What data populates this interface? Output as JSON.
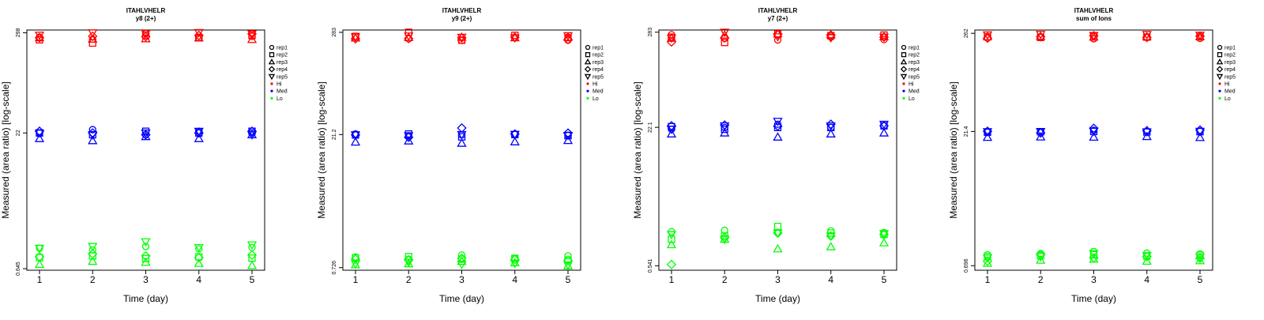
{
  "chart_data": [
    {
      "type": "scatter",
      "title": "ITAHLVHELR",
      "subtitle": "y8 (2+)",
      "xlabel": "Time (day)",
      "ylabel": "Measured (area ratio) [log-scale]",
      "xlim": [
        1,
        5
      ],
      "yscale": "log",
      "ylim": [
        0.62,
        320
      ],
      "x_ticks": [
        "1",
        "2",
        "3",
        "4",
        "5"
      ],
      "y_ticks": [
        {
          "value": 298,
          "label": "298"
        },
        {
          "value": 22,
          "label": "22"
        },
        {
          "value": 0.645,
          "label": "0.645"
        }
      ],
      "legend": {
        "placement": "right",
        "entries": [
          "rep1",
          "rep2",
          "rep3",
          "rep4",
          "rep5",
          "Hi",
          "Med",
          "Lo"
        ]
      },
      "series": [
        {
          "level": "Hi",
          "color": "#ff0000",
          "values": [
            [
              266,
              252,
              292,
              262,
              272
            ],
            [
              248,
              228,
              278,
              264,
              278
            ],
            [
              262,
              252,
              255,
              260,
              250
            ],
            [
              262,
              272,
              270,
              278,
              290
            ],
            [
              280,
              298,
              292,
              300,
              290
            ]
          ]
        },
        {
          "level": "Med",
          "color": "#0000ff",
          "values": [
            [
              22,
              24,
              21,
              23,
              22
            ],
            [
              22,
              21,
              23,
              22,
              23
            ],
            [
              19,
              18,
              20,
              19,
              21
            ],
            [
              23,
              22,
              21,
              22,
              23
            ],
            [
              22,
              21,
              22,
              23,
              21
            ]
          ]
        },
        {
          "level": "Lo",
          "color": "#00ff00",
          "values": [
            [
              1.1,
              1.05,
              1.15,
              1.08,
              1.12
            ],
            [
              0.86,
              0.9,
              0.84,
              0.88,
              0.85
            ],
            [
              0.72,
              0.78,
              0.76,
              0.74,
              0.7
            ],
            [
              0.88,
              0.95,
              0.9,
              0.86,
              0.92
            ],
            [
              1.1,
              1.15,
              1.3,
              1.12,
              1.2
            ]
          ]
        }
      ]
    },
    {
      "type": "scatter",
      "title": "ITAHLVHELR",
      "subtitle": "y9 (2+)",
      "xlabel": "Time (day)",
      "ylabel": "Measured (area ratio) [log-scale]",
      "xlim": [
        1,
        5
      ],
      "yscale": "log",
      "ylim": [
        0.68,
        300
      ],
      "x_ticks": [
        "1",
        "2",
        "3",
        "4",
        "5"
      ],
      "y_ticks": [
        {
          "value": 283,
          "label": "283"
        },
        {
          "value": 21.2,
          "label": "21.2"
        },
        {
          "value": 0.726,
          "label": "0.726"
        }
      ],
      "legend": {
        "placement": "right",
        "entries": [
          "rep1",
          "rep2",
          "rep3",
          "rep4",
          "rep5",
          "Hi",
          "Med",
          "Lo"
        ]
      },
      "series": [
        {
          "level": "Hi",
          "color": "#ff0000",
          "values": [
            [
              255,
              240,
              230,
              248,
              232
            ],
            [
              255,
              283,
              232,
              262,
              248
            ],
            [
              245,
              248,
              250,
              246,
              250
            ],
            [
              240,
              242,
              246,
              250,
              236
            ],
            [
              252,
              258,
              250,
              246,
              260
            ]
          ]
        },
        {
          "level": "Med",
          "color": "#0000ff",
          "values": [
            [
              21.5,
              20.5,
              21,
              21.2,
              20.8
            ],
            [
              21,
              21.5,
              20,
              21.2,
              20.6
            ],
            [
              17.5,
              18,
              17,
              17.6,
              18.2
            ],
            [
              21,
              19.8,
              25,
              21.5,
              22
            ],
            [
              21,
              20.6,
              21.2,
              21.3,
              20.8
            ]
          ]
        },
        {
          "level": "Lo",
          "color": "#00ff00",
          "values": [
            [
              0.95,
              0.9,
              1.0,
              0.92,
              0.98
            ],
            [
              0.93,
              0.96,
              0.9,
              0.92,
              0.88
            ],
            [
              0.78,
              0.8,
              0.85,
              0.82,
              0.76
            ],
            [
              0.9,
              0.88,
              0.92,
              0.89,
              0.87
            ],
            [
              0.8,
              0.83,
              0.79,
              0.81,
              0.78
            ]
          ]
        }
      ]
    },
    {
      "type": "scatter",
      "title": "ITAHLVHELR",
      "subtitle": "y7 (2+)",
      "xlabel": "Time (day)",
      "ylabel": "Measured (area ratio) [log-scale]",
      "xlim": [
        1,
        5
      ],
      "yscale": "log",
      "ylim": [
        0.48,
        300
      ],
      "x_ticks": [
        "1",
        "2",
        "3",
        "4",
        "5"
      ],
      "y_ticks": [
        {
          "value": 283,
          "label": "283"
        },
        {
          "value": 22.1,
          "label": "22.1"
        },
        {
          "value": 0.541,
          "label": "0.541"
        }
      ],
      "legend": {
        "placement": "right",
        "entries": [
          "rep1",
          "rep2",
          "rep3",
          "rep4",
          "rep5",
          "Hi",
          "Med",
          "Lo"
        ]
      },
      "series": [
        {
          "level": "Hi",
          "color": "#ff0000",
          "values": [
            [
              265,
              240,
              230,
              248,
              232
            ],
            [
              248,
              215,
              270,
              258,
              262
            ],
            [
              240,
              262,
              270,
              264,
              250
            ],
            [
              218,
              242,
              268,
              262,
              248
            ],
            [
              242,
              283,
              250,
              244,
              248
            ]
          ]
        },
        {
          "level": "Med",
          "color": "#0000ff",
          "values": [
            [
              21,
              22,
              24,
              22,
              23
            ],
            [
              22.5,
              21,
              22,
              22,
              23
            ],
            [
              18.5,
              19,
              17,
              18.5,
              19
            ],
            [
              23,
              23.5,
              22.8,
              24,
              23
            ],
            [
              21,
              23,
              26,
              23,
              24
            ]
          ]
        },
        {
          "level": "Lo",
          "color": "#00ff00",
          "values": [
            [
              1.35,
              1.4,
              1.3,
              1.38,
              1.32
            ],
            [
              1.1,
              1.2,
              1.55,
              1.3,
              1.25
            ],
            [
              0.95,
              1.1,
              0.85,
              0.9,
              1.0
            ],
            [
              0.56,
              1.15,
              1.3,
              1.2,
              1.25
            ],
            [
              1.25,
              1.1,
              1.3,
              1.2,
              1.28
            ]
          ]
        }
      ]
    },
    {
      "type": "scatter",
      "title": "ITAHLVHELR",
      "subtitle": "sum of Ions",
      "xlabel": "Time (day)",
      "ylabel": "Measured (area ratio) [log-scale]",
      "xlim": [
        1,
        5
      ],
      "yscale": "log",
      "ylim": [
        0.62,
        285
      ],
      "x_ticks": [
        "1",
        "2",
        "3",
        "4",
        "5"
      ],
      "y_ticks": [
        {
          "value": 262,
          "label": "262"
        },
        {
          "value": 21.4,
          "label": "21.4"
        },
        {
          "value": 0.696,
          "label": "0.696"
        }
      ],
      "legend": {
        "placement": "right",
        "entries": [
          "rep1",
          "rep2",
          "rep3",
          "rep4",
          "rep5",
          "Hi",
          "Med",
          "Lo"
        ]
      },
      "series": [
        {
          "level": "Hi",
          "color": "#ff0000",
          "values": [
            [
              232,
              238,
              228,
              236,
              230
            ],
            [
              240,
              236,
              242,
              238,
              240
            ],
            [
              240,
              242,
              238,
              240,
              241
            ],
            [
              232,
              240,
              246,
              236,
              244
            ],
            [
              252,
              255,
              248,
              254,
              250
            ]
          ]
        },
        {
          "level": "Med",
          "color": "#0000ff",
          "values": [
            [
              21,
              21.2,
              22,
              21.4,
              21.6
            ],
            [
              21,
              21.2,
              21.4,
              21.1,
              21.3
            ],
            [
              18.4,
              18.6,
              18.5,
              18.8,
              18.3
            ],
            [
              21.5,
              20.6,
              23.2,
              21.8,
              22.2
            ],
            [
              21.3,
              21.4,
              21.6,
              21.2,
              21.5
            ]
          ]
        },
        {
          "level": "Lo",
          "color": "#00ff00",
          "values": [
            [
              0.92,
              0.95,
              1.0,
              0.96,
              0.94
            ],
            [
              0.88,
              0.9,
              0.92,
              0.89,
              0.91
            ],
            [
              0.74,
              0.8,
              0.82,
              0.78,
              0.79
            ],
            [
              0.78,
              0.92,
              0.85,
              0.88,
              0.84
            ],
            [
              0.85,
              0.88,
              0.95,
              0.9,
              0.87
            ]
          ]
        }
      ]
    }
  ]
}
